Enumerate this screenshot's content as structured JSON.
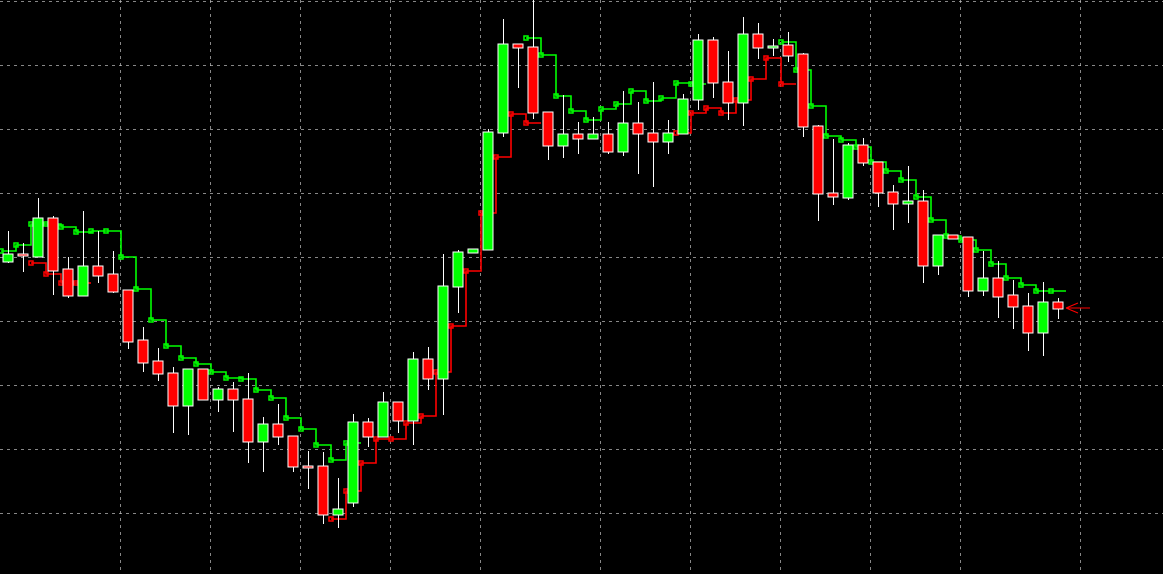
{
  "chart_data": {
    "type": "candlestick",
    "title": "",
    "xlabel": "",
    "ylabel": "",
    "ylim": [
      0,
      57.4
    ],
    "grid": true,
    "legend": "none",
    "colors": {
      "background": "#000000",
      "bull_body": "#00ff00",
      "bear_body": "#ff0000",
      "wick": "#ffffff",
      "grid": "#c0c0c0",
      "resistance_line": "#00ff00",
      "support_line": "#ff0000",
      "price_arrow": "#ff0000"
    },
    "candles": [
      [
        31.2,
        34.3,
        31.1,
        32.0
      ],
      [
        32.0,
        33.1,
        30.2,
        31.8
      ],
      [
        31.7,
        37.6,
        31.7,
        35.6
      ],
      [
        35.6,
        35.8,
        27.9,
        30.3
      ],
      [
        30.5,
        31.7,
        27.6,
        27.8
      ],
      [
        27.8,
        36.3,
        27.8,
        30.8
      ],
      [
        30.8,
        34.3,
        29.1,
        29.8
      ],
      [
        30.0,
        32.3,
        28.1,
        28.2
      ],
      [
        28.4,
        28.4,
        22.5,
        23.2
      ],
      [
        23.4,
        24.7,
        20.2,
        21.1
      ],
      [
        21.3,
        22.6,
        19.3,
        20.0
      ],
      [
        20.1,
        20.7,
        14.1,
        16.8
      ],
      [
        16.8,
        20.5,
        13.9,
        20.5
      ],
      [
        20.5,
        20.5,
        17.4,
        17.4
      ],
      [
        17.4,
        18.7,
        16.2,
        18.5
      ],
      [
        18.5,
        19.2,
        14.2,
        17.4
      ],
      [
        17.5,
        20.1,
        11.1,
        13.2
      ],
      [
        13.2,
        15.7,
        10.2,
        15.0
      ],
      [
        15.0,
        17.0,
        12.9,
        13.7
      ],
      [
        13.8,
        13.8,
        10.2,
        10.7
      ],
      [
        10.8,
        12.3,
        8.5,
        10.7
      ],
      [
        10.8,
        12.2,
        5.0,
        5.9
      ],
      [
        5.9,
        9.6,
        4.6,
        6.5
      ],
      [
        7.1,
        16.0,
        6.7,
        15.2
      ],
      [
        15.2,
        15.6,
        12.7,
        13.7
      ],
      [
        13.7,
        18.2,
        13.7,
        17.2
      ],
      [
        17.2,
        17.2,
        14.1,
        15.3
      ],
      [
        15.3,
        22.2,
        12.9,
        21.5
      ],
      [
        21.5,
        22.7,
        18.4,
        19.5
      ],
      [
        19.5,
        32.0,
        15.9,
        28.8
      ],
      [
        28.7,
        32.4,
        26.1,
        32.2
      ],
      [
        32.1,
        32.5,
        32.1,
        32.5
      ],
      [
        32.4,
        44.5,
        32.4,
        44.2
      ],
      [
        44.1,
        55.5,
        43.7,
        53.0
      ],
      [
        53.0,
        53.0,
        48.6,
        52.6
      ],
      [
        52.7,
        57.4,
        45.5,
        46.1
      ],
      [
        46.2,
        46.2,
        41.4,
        42.8
      ],
      [
        42.8,
        47.9,
        41.6,
        44.0
      ],
      [
        44.0,
        45.2,
        42.0,
        43.5
      ],
      [
        43.5,
        45.7,
        43.5,
        44.0
      ],
      [
        44.0,
        45.2,
        42.0,
        42.2
      ],
      [
        42.2,
        48.3,
        41.8,
        45.1
      ],
      [
        45.1,
        47.2,
        40.0,
        44.0
      ],
      [
        44.1,
        49.2,
        38.7,
        43.2
      ],
      [
        43.2,
        45.4,
        42.0,
        44.1
      ],
      [
        44.0,
        48.0,
        44.0,
        47.5
      ],
      [
        47.4,
        54.0,
        46.4,
        53.4
      ],
      [
        53.4,
        53.7,
        47.6,
        49.1
      ],
      [
        49.2,
        52.3,
        45.4,
        47.1
      ],
      [
        47.1,
        55.7,
        44.8,
        54.0
      ],
      [
        54.0,
        55.1,
        51.5,
        52.6
      ],
      [
        52.7,
        53.5,
        51.8,
        52.8
      ],
      [
        52.9,
        54.2,
        51.2,
        51.8
      ],
      [
        52.0,
        52.1,
        43.7,
        44.7
      ],
      [
        44.8,
        44.9,
        35.3,
        38.0
      ],
      [
        38.1,
        43.5,
        36.9,
        37.7
      ],
      [
        37.6,
        43.1,
        37.4,
        42.9
      ],
      [
        42.9,
        43.6,
        40.8,
        41.1
      ],
      [
        41.2,
        41.2,
        36.7,
        38.1
      ],
      [
        38.2,
        38.9,
        34.4,
        37.0
      ],
      [
        37.0,
        40.8,
        35.1,
        37.3
      ],
      [
        37.3,
        38.4,
        29.1,
        30.8
      ],
      [
        30.8,
        33.9,
        29.9,
        33.9
      ],
      [
        33.9,
        33.9,
        33.5,
        33.5
      ],
      [
        33.7,
        33.7,
        27.7,
        28.3
      ],
      [
        28.3,
        32.3,
        27.8,
        29.6
      ],
      [
        29.6,
        31.3,
        25.6,
        27.7
      ],
      [
        27.9,
        29.4,
        24.5,
        26.7
      ],
      [
        26.8,
        28.1,
        22.3,
        24.1
      ],
      [
        24.1,
        29.2,
        21.8,
        27.2
      ],
      [
        27.2,
        27.6,
        25.5,
        26.5
      ]
    ],
    "candle_format": [
      "open",
      "high",
      "low",
      "close"
    ],
    "series": [
      {
        "kind": "resistance-step-line",
        "values": [
          32.3,
          32.9,
          35.0,
          35.0,
          34.7,
          34.2,
          34.3,
          34.3,
          31.7,
          28.5,
          25.4,
          22.8,
          21.6,
          21.0,
          20.2,
          19.6,
          19.5,
          18.4,
          17.6,
          15.6,
          14.5,
          12.9,
          11.4,
          13.1,
          null,
          null,
          null,
          null,
          null,
          null,
          null,
          null,
          null,
          null,
          null,
          53.6,
          51.9,
          47.8,
          46.3,
          45.4,
          46.5,
          47.0,
          48.3,
          47.3,
          47.6,
          49.1,
          49.0,
          null,
          null,
          null,
          null,
          null,
          53.2,
          50.4,
          46.8,
          43.8,
          43.4,
          42.7,
          41.2,
          40.3,
          39.4,
          37.7,
          35.4,
          33.8,
          33.4,
          32.4,
          31.0,
          29.6,
          28.9,
          28.3,
          28.3
        ]
      },
      {
        "kind": "support-step-line",
        "values": [
          null,
          null,
          31.1,
          30.0,
          29.1,
          29.1,
          null,
          null,
          null,
          null,
          null,
          null,
          null,
          null,
          null,
          null,
          null,
          null,
          null,
          null,
          null,
          null,
          5.5,
          8.3,
          11.1,
          13.5,
          13.5,
          15.1,
          15.8,
          20.2,
          24.8,
          30.3,
          36.1,
          41.7,
          46.0,
          45.1,
          null,
          null,
          null,
          null,
          null,
          null,
          null,
          null,
          null,
          44.1,
          46.1,
          46.6,
          46.1,
          47.4,
          49.5,
          51.6,
          49.0,
          null,
          null,
          null,
          null,
          null,
          null,
          null,
          null,
          null,
          null,
          null,
          null,
          null,
          null,
          null,
          null,
          null,
          null
        ]
      }
    ],
    "current_price_marker": 26.6
  }
}
